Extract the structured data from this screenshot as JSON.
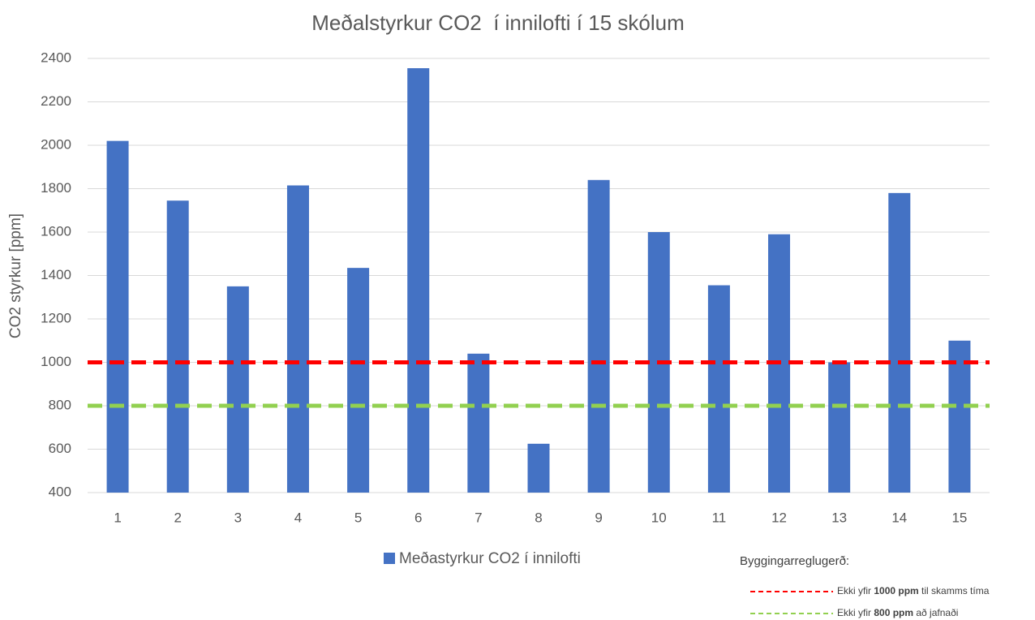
{
  "chart_data": {
    "type": "bar",
    "title": "Meðalstyrkur CO2  í innilofti í 15 skólum",
    "y_label": "CO2 styrkur [ppm]",
    "categories": [
      "1",
      "2",
      "3",
      "4",
      "5",
      "6",
      "7",
      "8",
      "9",
      "10",
      "11",
      "12",
      "13",
      "14",
      "15"
    ],
    "series": [
      {
        "name": "Meðastyrkur CO2 í innilofti",
        "color": "#4472c4",
        "values": [
          2020,
          1745,
          1350,
          1815,
          1435,
          2355,
          1040,
          625,
          1840,
          1600,
          1355,
          1590,
          1000,
          1780,
          1100
        ]
      }
    ],
    "ylim": [
      400,
      2400
    ],
    "yticks": [
      400,
      600,
      800,
      1000,
      1200,
      1400,
      1600,
      1800,
      2000,
      2200,
      2400
    ],
    "grid": true,
    "reference_title": "Byggingarreglugerð:",
    "reference_lines": [
      {
        "value": 1000,
        "color": "#ff0000",
        "label": [
          "Ekki yfir ",
          "1000 ppm",
          " til skamms tíma"
        ]
      },
      {
        "value": 800,
        "color": "#92d050",
        "label": [
          "Ekki yfir ",
          "800 ppm",
          " að jafnaði"
        ]
      }
    ]
  }
}
